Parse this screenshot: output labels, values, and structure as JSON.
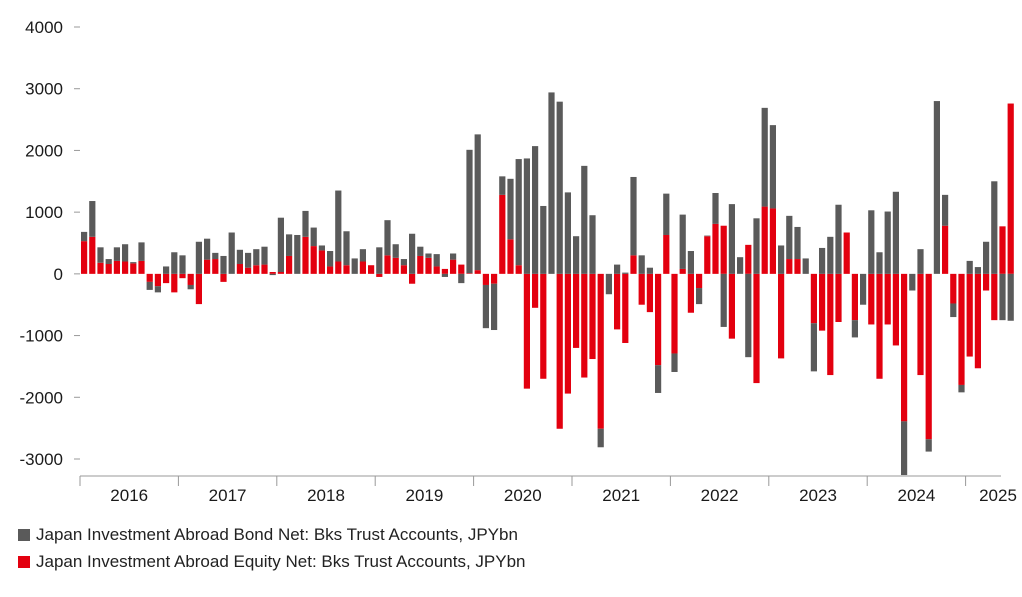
{
  "chart_data": {
    "type": "bar",
    "stacked": true,
    "x_labels": [
      "2016",
      "2017",
      "2018",
      "2019",
      "2020",
      "2021",
      "2022",
      "2023",
      "2024",
      "2025"
    ],
    "ylim": [
      -3000,
      4000
    ],
    "yticks": [
      4000,
      3000,
      2000,
      1000,
      0,
      -1000,
      -2000,
      -3000
    ],
    "grid": false,
    "legend_position": "bottom-left",
    "series": [
      {
        "name": "Japan Investment Abroad Bond Net: Bks Trust Accounts, JPYbn",
        "color": "#5a5a5a",
        "values": [
          150,
          580,
          250,
          80,
          220,
          280,
          20,
          300,
          -130,
          -100,
          120,
          350,
          300,
          -70,
          520,
          340,
          100,
          290,
          670,
          230,
          240,
          260,
          290,
          -20,
          880,
          350,
          630,
          420,
          300,
          80,
          250,
          1150,
          550,
          250,
          200,
          0,
          430,
          570,
          220,
          100,
          650,
          150,
          70,
          200,
          -50,
          100,
          -150,
          2000,
          2200,
          -700,
          -750,
          300,
          980,
          1720,
          1870,
          2070,
          1100,
          2940,
          2790,
          1320,
          610,
          1750,
          950,
          -300,
          -330,
          150,
          20,
          1270,
          300,
          100,
          -450,
          670,
          -300,
          880,
          370,
          -260,
          10,
          500,
          -860,
          1130,
          270,
          -1350,
          900,
          1600,
          1350,
          460,
          700,
          520,
          250,
          -780,
          420,
          600,
          1120,
          0,
          -280,
          -500,
          1030,
          350,
          1010,
          1330,
          -870,
          -270,
          400,
          -200,
          2800,
          500,
          -220,
          -120,
          210,
          110,
          520,
          1500,
          -750,
          -760
        ],
        "equity_values": [
          530,
          600,
          180,
          160,
          210,
          200,
          170,
          210,
          -130,
          -200,
          -150,
          -300,
          -70,
          -180,
          -490,
          230,
          240,
          -130,
          0,
          160,
          100,
          140,
          150,
          30,
          30,
          290,
          0,
          600,
          450,
          380,
          120,
          200,
          140,
          0,
          200,
          140,
          -50,
          300,
          260,
          140,
          -160,
          290,
          260,
          120,
          80,
          230,
          150,
          10,
          60,
          -180,
          -160,
          1280,
          560,
          140,
          -1860,
          -550,
          -1700,
          0,
          -2510,
          -1940,
          -1200,
          -1680,
          -1380,
          -2510,
          0,
          -900,
          -1120,
          300,
          -500,
          -620,
          -1480,
          630,
          -1290,
          80,
          -630,
          -230,
          610,
          810,
          780,
          -1050,
          0,
          470,
          -1770,
          1090,
          1060,
          -1370,
          240,
          240,
          0,
          -800,
          -920,
          -1640,
          -780,
          670,
          -750,
          0,
          -820,
          -1700,
          -820,
          -1160,
          -2390,
          0,
          -1640,
          -2680,
          0,
          780,
          -480,
          -1800,
          -1340,
          -1530,
          -270,
          -750,
          770,
          2760
        ]
      },
      {
        "name": "Japan Investment Abroad Equity Net: Bks Trust Accounts, JPYbn",
        "color": "#e3000f"
      }
    ]
  },
  "legend": {
    "bond_label": "Japan Investment Abroad Bond Net: Bks Trust Accounts, JPYbn",
    "equity_label": "Japan Investment Abroad Equity Net: Bks Trust Accounts, JPYbn",
    "bond_color": "#5a5a5a",
    "equity_color": "#e3000f"
  }
}
